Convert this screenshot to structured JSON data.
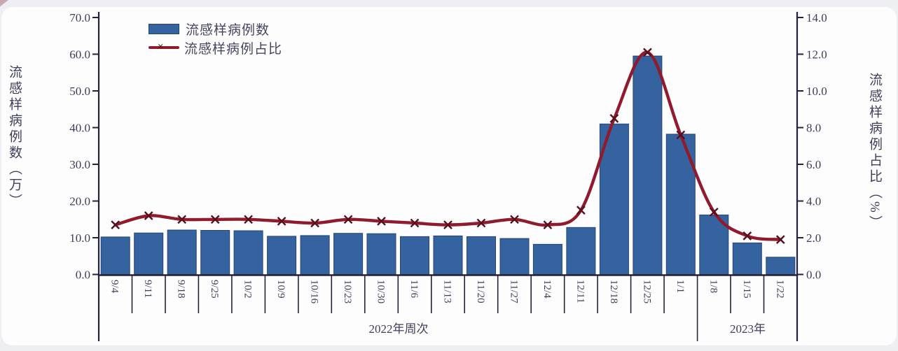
{
  "chart_data": {
    "type": "bar+line",
    "categories": [
      "9/4",
      "9/11",
      "9/18",
      "9/25",
      "10/2",
      "10/9",
      "10/16",
      "10/23",
      "10/30",
      "11/6",
      "11/13",
      "11/20",
      "11/27",
      "12/4",
      "12/11",
      "12/18",
      "12/25",
      "1/1",
      "1/8",
      "1/15",
      "1/22"
    ],
    "series": [
      {
        "name": "流感样病例数",
        "type": "bar",
        "axis": "left",
        "color": "#35639f",
        "values": [
          10.2,
          11.3,
          12.1,
          12.0,
          11.9,
          10.4,
          10.6,
          11.2,
          11.1,
          10.3,
          10.5,
          10.3,
          9.8,
          8.2,
          12.8,
          41.0,
          59.5,
          38.2,
          16.2,
          8.6,
          4.7
        ]
      },
      {
        "name": "流感样病例占比",
        "type": "line",
        "axis": "right",
        "color": "#8f1b2c",
        "marker": "x",
        "marker_color": "#55101f",
        "values": [
          2.7,
          3.2,
          3.0,
          3.0,
          3.0,
          2.9,
          2.8,
          3.0,
          2.9,
          2.8,
          2.7,
          2.8,
          3.0,
          2.7,
          3.5,
          8.5,
          12.1,
          7.6,
          3.4,
          2.1,
          1.9
        ]
      }
    ],
    "left_axis": {
      "title": "流感样病例数（万）",
      "min": 0,
      "max": 70,
      "step": 10,
      "ticks": [
        "0.0",
        "10.0",
        "20.0",
        "30.0",
        "40.0",
        "50.0",
        "60.0",
        "70.0"
      ]
    },
    "right_axis": {
      "title": "流感样病例占比（%）",
      "min": 0,
      "max": 14,
      "step": 2,
      "ticks": [
        "0.0",
        "2.0",
        "4.0",
        "6.0",
        "8.0",
        "10.0",
        "12.0",
        "14.0"
      ]
    },
    "x_groups": [
      {
        "label": "2022年周次",
        "start": 0,
        "end": 18
      },
      {
        "label": "2023年",
        "start": 18,
        "end": 21
      }
    ],
    "grid": false,
    "legend_position": "top-left-inside",
    "axis_color": "#23233b",
    "text_color": "#3e3e5a"
  }
}
